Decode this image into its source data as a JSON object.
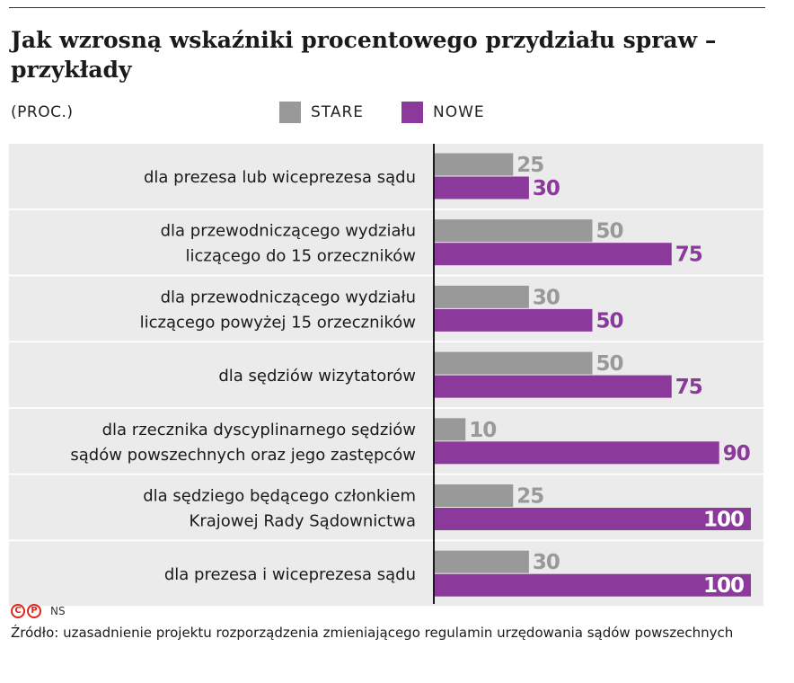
{
  "title": "Jak wzrosną wskaźniki procentowego przydziału spraw – przykłady",
  "unit_label": "(PROC.)",
  "legend": [
    {
      "label": "STARE",
      "color": "#999999"
    },
    {
      "label": "NOWE",
      "color": "#8b3a9b"
    }
  ],
  "chart_data": {
    "type": "bar",
    "orientation": "horizontal",
    "categories": [
      [
        "dla prezesa lub wiceprezesa sądu"
      ],
      [
        "dla przewodniczącego wydziału",
        "liczącego do 15 orzeczników"
      ],
      [
        "dla przewodniczącego wydziału",
        "liczącego powyżej 15 orzeczników"
      ],
      [
        "dla sędziów wizytatorów"
      ],
      [
        "dla rzecznika dyscyplinarnego sędziów",
        "sądów powszechnych oraz jego zastępców"
      ],
      [
        "dla sędziego będącego członkiem",
        "Krajowej Rady Sądownictwa"
      ],
      [
        "dla prezesa i wiceprezesa sądu"
      ]
    ],
    "series": [
      {
        "name": "STARE",
        "values": [
          25,
          50,
          30,
          50,
          10,
          25,
          30
        ],
        "color": "#999999"
      },
      {
        "name": "NOWE",
        "values": [
          30,
          75,
          50,
          75,
          90,
          100,
          100
        ],
        "color": "#8b3a9b"
      }
    ],
    "xlim": [
      0,
      100
    ],
    "title": "Jak wzrosną wskaźniki procentowego przydziału spraw – przykłady",
    "xlabel": "(PROC.)",
    "ylabel": ""
  },
  "logo": {
    "icon": "cp-copyright-icon",
    "initials": "NS",
    "color": "#e0241b"
  },
  "source": "Źródło: uzasadnienie projektu rozporządzenia zmieniającego regulamin urzędowania sądów powszechnych",
  "colors": {
    "row_band": "#ebebeb",
    "axis": "#1a1a1a",
    "inside_label": "#ffffff"
  }
}
